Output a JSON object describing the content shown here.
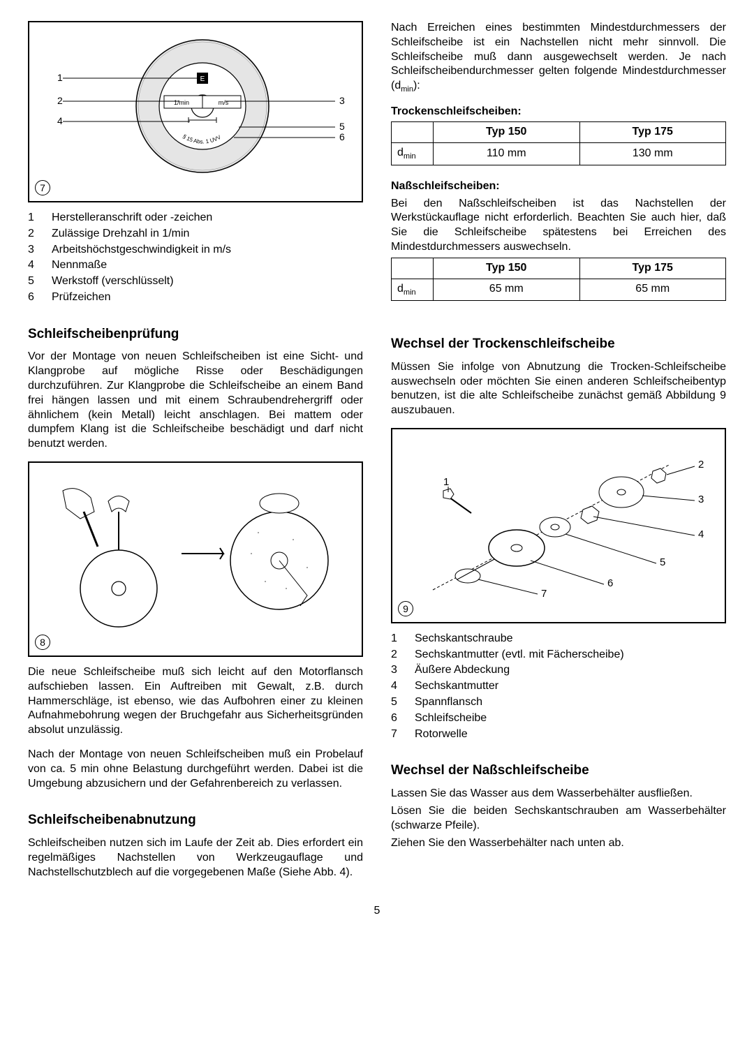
{
  "fig7": {
    "label": "7",
    "callouts": [
      "1",
      "2",
      "3",
      "4",
      "5",
      "6"
    ],
    "disc_text": {
      "rpm": "1/min",
      "ms": "m/s",
      "arc": "§ 15 Abs. 1 UVV"
    }
  },
  "legend7": [
    {
      "n": "1",
      "t": "Herstelleranschrift oder -zeichen"
    },
    {
      "n": "2",
      "t": "Zulässige Drehzahl in 1/min"
    },
    {
      "n": "3",
      "t": "Arbeitshöchstgeschwindigkeit in m/s"
    },
    {
      "n": "4",
      "t": "Nennmaße"
    },
    {
      "n": "5",
      "t": "Werkstoff (verschlüsselt)"
    },
    {
      "n": "6",
      "t": "Prüfzeichen"
    }
  ],
  "left": {
    "h1": "Schleifscheibenprüfung",
    "p1": "Vor der Montage von neuen Schleifscheiben ist eine Sicht- und Klangprobe auf mögliche Risse oder Beschädigungen durchzuführen. Zur Klangprobe die Schleifscheibe an einem Band frei hängen lassen und mit einem Schraubendrehergriff oder ähnlichem (kein Metall) leicht anschlagen. Bei mattem oder dumpfem Klang ist die Schleifscheibe beschädigt und darf nicht benutzt werden.",
    "fig8_label": "8",
    "p2": "Die neue Schleifscheibe muß sich leicht auf den Motorflansch aufschieben lassen. Ein Auftreiben mit Gewalt, z.B. durch Hammerschläge, ist ebenso, wie das Aufbohren einer zu kleinen Aufnahmebohrung wegen der Bruchgefahr aus Sicherheitsgründen absolut unzulässig.",
    "p3": "Nach der Montage von neuen Schleifscheiben muß ein Probelauf von ca. 5 min ohne Belastung durchgeführt werden. Dabei ist die Umgebung abzusichern und der Gefahrenbereich zu verlassen.",
    "h2": "Schleifscheibenabnutzung",
    "p4": "Schleifscheiben nutzen sich im Laufe der Zeit ab. Dies erfordert ein regelmäßiges Nachstellen von Werkzeugauflage und Nachstellschutzblech auf die vorgegebenen Maße (Siehe Abb. 4)."
  },
  "right": {
    "p0": "Nach Erreichen eines bestimmten Mindestdurchmessers der Schleifscheibe ist ein Nachstellen nicht mehr sinnvoll. Die Schleifscheibe muß dann ausgewechselt werden. Je nach Schleifscheibendurchmesser gelten folgende Mindestdurchmesser (d",
    "p0_sub": "min",
    "p0_end": "):",
    "t1_title": "Trockenschleifscheiben:",
    "table1": {
      "headers": [
        "",
        "Typ 150",
        "Typ 175"
      ],
      "row": [
        "d",
        "110 mm",
        "130 mm"
      ],
      "row_sub": "min"
    },
    "t2_title": "Naßschleifscheiben:",
    "t2_p": "Bei den Naßschleifscheiben ist das Nachstellen der Werkstückauflage nicht erforderlich. Beachten Sie auch hier, daß Sie die Schleifscheibe spätestens bei Erreichen des Mindestdurchmessers auswechseln.",
    "table2": {
      "headers": [
        "",
        "Typ 150",
        "Typ 175"
      ],
      "row": [
        "d",
        "65 mm",
        "65 mm"
      ],
      "row_sub": "min"
    },
    "h3": "Wechsel der Trockenschleifscheibe",
    "p5": "Müssen Sie infolge von Abnutzung die Trocken-Schleifscheibe auswechseln oder möchten Sie einen anderen Schleifscheibentyp benutzen, ist die alte Schleifscheibe zunächst gemäß Abbildung 9 auszubauen.",
    "fig9_label": "9",
    "fig9_callouts": [
      "1",
      "2",
      "3",
      "4",
      "5",
      "6",
      "7"
    ],
    "legend9": [
      {
        "n": "1",
        "t": "Sechskantschraube"
      },
      {
        "n": "2",
        "t": "Sechskantmutter (evtl. mit Fächerscheibe)"
      },
      {
        "n": "3",
        "t": "Äußere Abdeckung"
      },
      {
        "n": "4",
        "t": "Sechskantmutter"
      },
      {
        "n": "5",
        "t": "Spannflansch"
      },
      {
        "n": "6",
        "t": "Schleifscheibe"
      },
      {
        "n": "7",
        "t": "Rotorwelle"
      }
    ],
    "h4": "Wechsel der Naßschleifscheibe",
    "p6": "Lassen Sie das Wasser aus dem Wasserbehälter ausfließen.",
    "p7": "Lösen Sie die beiden Sechskantschrauben am Wasserbehälter (schwarze Pfeile).",
    "p8": "Ziehen Sie den Wasserbehälter nach unten ab."
  },
  "page": "5"
}
